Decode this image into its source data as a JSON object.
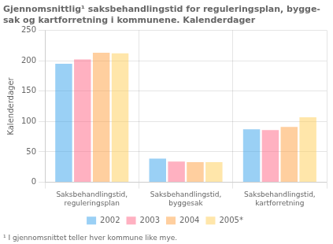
{
  "chart_data": {
    "type": "bar",
    "title": "Gjennomsnittlig¹ saksbehandlingstid for reguleringsplan, bygge-\nsak og kartforretning i kommunene. Kalenderdager",
    "ylabel": "Kalenderdager",
    "footnote": "¹ I gjennomsnittet teller hver kommune like mye.",
    "categories": [
      "Saksbehandlingstid,\nreguleringsplan",
      "Saksbehandlingstid,\nbyggesak",
      "Saksbehandlingstid,\nkartforretning"
    ],
    "series": [
      {
        "name": "2002",
        "values": [
          195,
          39,
          87
        ]
      },
      {
        "name": "2003",
        "values": [
          202,
          34,
          86
        ]
      },
      {
        "name": "2004",
        "values": [
          213,
          33,
          91
        ]
      },
      {
        "name": "2005*",
        "values": [
          212,
          33,
          107
        ]
      }
    ],
    "ylim": [
      0,
      250
    ],
    "yticks": [
      0,
      50,
      100,
      150,
      200,
      250
    ],
    "grid": true,
    "legend": "bottom"
  }
}
